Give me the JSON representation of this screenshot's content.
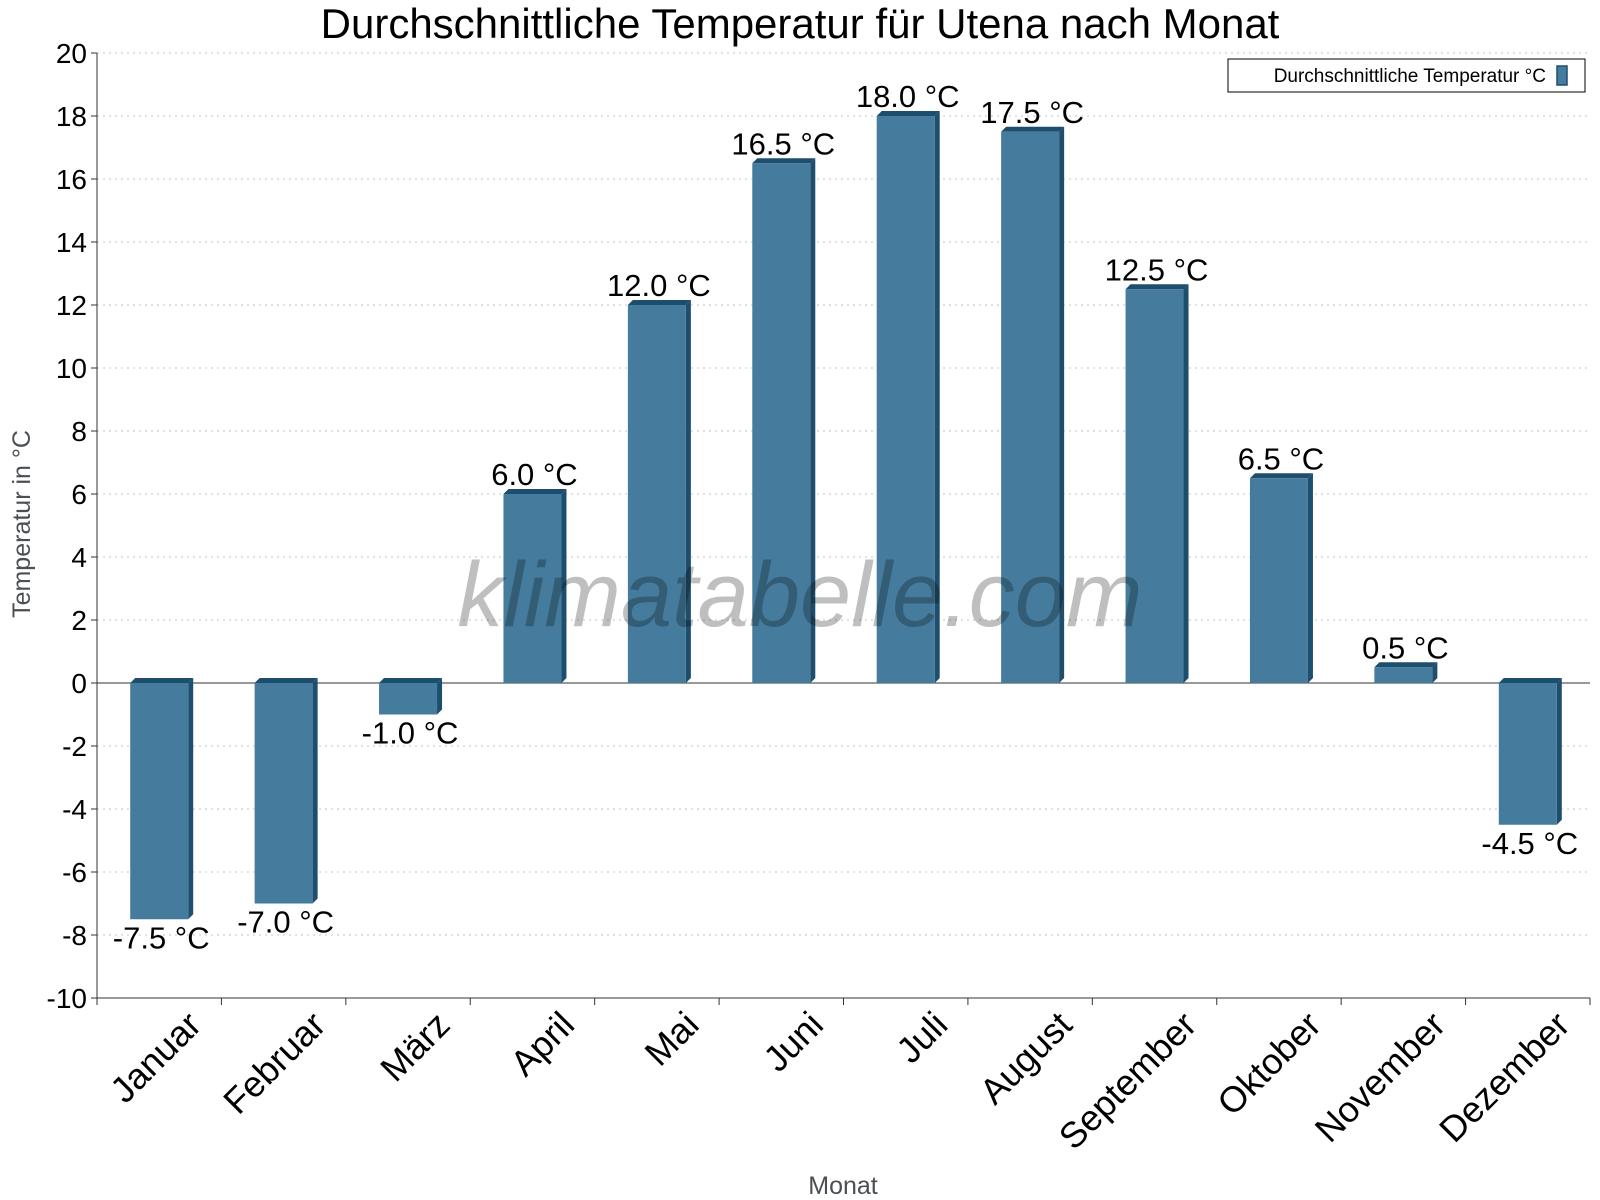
{
  "chart_data": {
    "type": "bar",
    "title": "Durchschnittliche Temperatur für Utena nach Monat",
    "xlabel": "Monat",
    "ylabel": "Temperatur in °C",
    "categories": [
      "Januar",
      "Februar",
      "März",
      "April",
      "Mai",
      "Juni",
      "Juli",
      "August",
      "September",
      "Oktober",
      "November",
      "Dezember"
    ],
    "series": [
      {
        "name": "Durchschnittliche Temperatur °C",
        "values": [
          -7.5,
          -7.0,
          -1.0,
          6.0,
          12.0,
          16.5,
          18.0,
          17.5,
          12.5,
          6.5,
          0.5,
          -4.5
        ],
        "labels": [
          "-7.5 °C",
          "-7.0 °C",
          "-1.0 °C",
          "6.0 °C",
          "12.0 °C",
          "16.5 °C",
          "18.0 °C",
          "17.5 °C",
          "12.5 °C",
          "6.5 °C",
          "0.5 °C",
          "-4.5 °C"
        ]
      }
    ],
    "ylim": [
      -10,
      20
    ],
    "yticks": [
      "-10",
      "-8",
      "-6",
      "-4",
      "-2",
      "0",
      "2",
      "4",
      "6",
      "8",
      "10",
      "12",
      "14",
      "16",
      "18",
      "20"
    ],
    "grid": true,
    "legend_position": "top-right",
    "bar_color": "#457b9d",
    "bar_side_color": "#1d4e6e",
    "watermark": "klimatabelle.com"
  }
}
